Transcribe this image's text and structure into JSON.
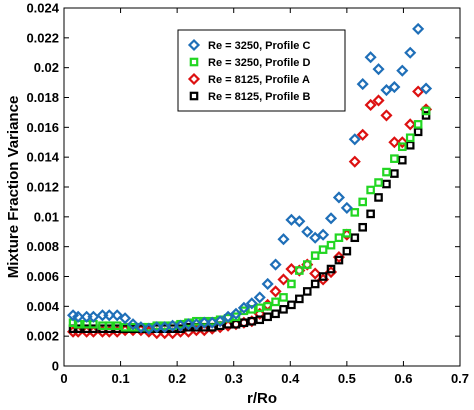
{
  "chart_data": {
    "type": "scatter",
    "xlabel": "r/Ro",
    "ylabel": "Mixture Fraction Variance",
    "xlim": [
      0,
      0.7
    ],
    "ylim": [
      0,
      0.024
    ],
    "xticks": [
      "0",
      "0.1",
      "0.2",
      "0.3",
      "0.4",
      "0.5",
      "0.6",
      "0.7"
    ],
    "yticks": [
      "0",
      "0.002",
      "0.004",
      "0.006",
      "0.008",
      "0.01",
      "0.012",
      "0.014",
      "0.016",
      "0.018",
      "0.02",
      "0.022",
      "0.024"
    ],
    "grid": false,
    "legend_position": "top-center",
    "series": [
      {
        "name": "Re = 3250, Profile C",
        "color": "#1f6fb8",
        "marker": "diamond",
        "x": [
          0.016,
          0.025,
          0.04,
          0.052,
          0.068,
          0.08,
          0.094,
          0.108,
          0.122,
          0.136,
          0.15,
          0.164,
          0.178,
          0.192,
          0.206,
          0.22,
          0.234,
          0.248,
          0.262,
          0.276,
          0.29,
          0.304,
          0.318,
          0.332,
          0.346,
          0.36,
          0.374,
          0.388,
          0.402,
          0.416,
          0.43,
          0.444,
          0.458,
          0.472,
          0.486,
          0.5,
          0.514,
          0.528,
          0.542,
          0.556,
          0.57,
          0.584,
          0.598,
          0.612,
          0.626,
          0.64
        ],
        "y": [
          0.0034,
          0.0033,
          0.0033,
          0.0033,
          0.0034,
          0.0034,
          0.0034,
          0.0032,
          0.0028,
          0.0026,
          0.0025,
          0.0026,
          0.0026,
          0.0027,
          0.0027,
          0.0028,
          0.0028,
          0.0029,
          0.0029,
          0.003,
          0.0033,
          0.0035,
          0.0039,
          0.0042,
          0.0046,
          0.0055,
          0.0068,
          0.0085,
          0.0098,
          0.0097,
          0.009,
          0.0086,
          0.0088,
          0.0099,
          0.0113,
          0.0106,
          0.0152,
          0.0189,
          0.0207,
          0.0199,
          0.0185,
          0.0187,
          0.0198,
          0.021,
          0.0226,
          0.0186
        ]
      },
      {
        "name": "Re = 3250, Profile D",
        "color": "#22d622",
        "marker": "square",
        "x": [
          0.016,
          0.025,
          0.04,
          0.052,
          0.068,
          0.08,
          0.094,
          0.108,
          0.122,
          0.136,
          0.15,
          0.164,
          0.178,
          0.192,
          0.206,
          0.22,
          0.234,
          0.248,
          0.262,
          0.276,
          0.29,
          0.304,
          0.318,
          0.332,
          0.346,
          0.36,
          0.374,
          0.388,
          0.402,
          0.416,
          0.43,
          0.444,
          0.458,
          0.472,
          0.486,
          0.5,
          0.514,
          0.528,
          0.542,
          0.556,
          0.57,
          0.584,
          0.598,
          0.612,
          0.626,
          0.64
        ],
        "y": [
          0.0029,
          0.0028,
          0.0028,
          0.0028,
          0.0027,
          0.0027,
          0.0027,
          0.0026,
          0.0026,
          0.0026,
          0.0026,
          0.0027,
          0.0027,
          0.0027,
          0.0028,
          0.0029,
          0.003,
          0.003,
          0.003,
          0.0031,
          0.0032,
          0.0033,
          0.0037,
          0.0038,
          0.0039,
          0.004,
          0.0043,
          0.0046,
          0.0055,
          0.0064,
          0.0068,
          0.0074,
          0.0078,
          0.0081,
          0.0086,
          0.0089,
          0.0103,
          0.011,
          0.0118,
          0.0123,
          0.013,
          0.0139,
          0.0147,
          0.0153,
          0.0162,
          0.0171
        ]
      },
      {
        "name": "Re = 8125, Profile A",
        "color": "#dd1111",
        "marker": "diamond",
        "x": [
          0.016,
          0.025,
          0.04,
          0.052,
          0.068,
          0.08,
          0.094,
          0.108,
          0.122,
          0.136,
          0.15,
          0.164,
          0.178,
          0.192,
          0.206,
          0.22,
          0.234,
          0.248,
          0.262,
          0.276,
          0.29,
          0.304,
          0.318,
          0.332,
          0.346,
          0.36,
          0.374,
          0.388,
          0.402,
          0.416,
          0.43,
          0.444,
          0.458,
          0.472,
          0.486,
          0.5,
          0.514,
          0.528,
          0.542,
          0.556,
          0.57,
          0.584,
          0.598,
          0.612,
          0.626,
          0.64
        ],
        "y": [
          0.0023,
          0.0023,
          0.0023,
          0.0023,
          0.0023,
          0.0023,
          0.0023,
          0.0024,
          0.0024,
          0.0024,
          0.0023,
          0.0022,
          0.0022,
          0.0022,
          0.0023,
          0.0023,
          0.0024,
          0.0024,
          0.0025,
          0.0026,
          0.0027,
          0.0028,
          0.0029,
          0.003,
          0.0035,
          0.0041,
          0.005,
          0.0058,
          0.0065,
          0.0064,
          0.0068,
          0.0062,
          0.0058,
          0.0063,
          0.0073,
          0.0088,
          0.0137,
          0.0155,
          0.0175,
          0.0178,
          0.0168,
          0.015,
          0.015,
          0.0162,
          0.0184,
          0.0172
        ]
      },
      {
        "name": "Re = 8125, Profile B",
        "color": "#000000",
        "marker": "square",
        "x": [
          0.016,
          0.025,
          0.04,
          0.052,
          0.068,
          0.08,
          0.094,
          0.108,
          0.122,
          0.136,
          0.15,
          0.164,
          0.178,
          0.192,
          0.206,
          0.22,
          0.234,
          0.248,
          0.262,
          0.276,
          0.29,
          0.304,
          0.318,
          0.332,
          0.346,
          0.36,
          0.374,
          0.388,
          0.402,
          0.416,
          0.43,
          0.444,
          0.458,
          0.472,
          0.486,
          0.5,
          0.514,
          0.528,
          0.542,
          0.556,
          0.57,
          0.584,
          0.598,
          0.612,
          0.626,
          0.64
        ],
        "y": [
          0.0025,
          0.0025,
          0.0025,
          0.0025,
          0.0025,
          0.0025,
          0.0025,
          0.0025,
          0.0025,
          0.0025,
          0.0025,
          0.0025,
          0.0025,
          0.0025,
          0.0025,
          0.0026,
          0.0026,
          0.0026,
          0.0026,
          0.0027,
          0.0028,
          0.0028,
          0.0029,
          0.003,
          0.0031,
          0.0033,
          0.0035,
          0.0038,
          0.0041,
          0.0045,
          0.005,
          0.0055,
          0.006,
          0.0065,
          0.0071,
          0.0077,
          0.0086,
          0.0093,
          0.0102,
          0.0113,
          0.0122,
          0.0129,
          0.0138,
          0.0148,
          0.0157,
          0.0168
        ]
      }
    ]
  }
}
